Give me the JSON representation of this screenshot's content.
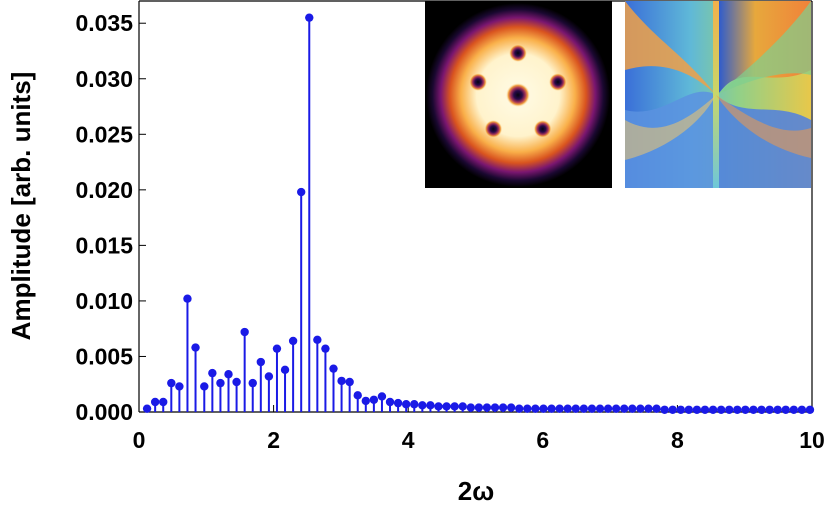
{
  "chart_data": {
    "type": "stem",
    "title": "",
    "xlabel": "2ω",
    "ylabel": "Amplitude [arb. units]",
    "xlim": [
      0,
      10
    ],
    "ylim": [
      0,
      0.037
    ],
    "x_ticks": [
      "0",
      "2",
      "4",
      "6",
      "8",
      "10"
    ],
    "y_ticks": [
      "0.000",
      "0.005",
      "0.010",
      "0.015",
      "0.020",
      "0.025",
      "0.030",
      "0.035"
    ],
    "grid": false,
    "legend": "none",
    "color": "#1a1ae6",
    "insets": [
      "density-image",
      "phase-image"
    ],
    "series": [
      {
        "x": [
          0.12,
          0.24,
          0.36,
          0.48,
          0.6,
          0.72,
          0.84,
          0.97,
          1.09,
          1.21,
          1.33,
          1.45,
          1.57,
          1.69,
          1.81,
          1.93,
          2.05,
          2.17,
          2.29,
          2.41,
          2.53,
          2.65,
          2.77,
          2.89,
          3.01,
          3.13,
          3.25,
          3.37,
          3.49,
          3.61,
          3.73,
          3.85,
          3.97,
          4.09,
          4.21,
          4.33,
          4.45,
          4.57,
          4.69,
          4.81,
          4.93,
          5.05,
          5.17,
          5.29,
          5.41,
          5.53,
          5.65,
          5.77,
          5.89,
          6.01,
          6.13,
          6.25,
          6.37,
          6.49,
          6.61,
          6.73,
          6.85,
          6.97,
          7.09,
          7.21,
          7.33,
          7.45,
          7.57,
          7.69,
          7.81,
          7.93,
          8.05,
          8.17,
          8.29,
          8.41,
          8.53,
          8.65,
          8.77,
          8.89,
          9.01,
          9.13,
          9.25,
          9.37,
          9.49,
          9.61,
          9.73,
          9.85,
          9.97
        ],
        "y": [
          0.0003,
          0.0009,
          0.0009,
          0.0026,
          0.0023,
          0.0102,
          0.0058,
          0.0023,
          0.0035,
          0.0026,
          0.0034,
          0.0027,
          0.0072,
          0.0026,
          0.0045,
          0.0032,
          0.0057,
          0.0038,
          0.0064,
          0.0198,
          0.0355,
          0.0065,
          0.0057,
          0.0039,
          0.0028,
          0.0027,
          0.0015,
          0.001,
          0.0011,
          0.0014,
          0.0009,
          0.0008,
          0.0007,
          0.0007,
          0.0006,
          0.0006,
          0.0005,
          0.0005,
          0.0005,
          0.0005,
          0.0004,
          0.0004,
          0.0004,
          0.0004,
          0.0004,
          0.0004,
          0.0003,
          0.0003,
          0.0003,
          0.0003,
          0.0003,
          0.0003,
          0.0003,
          0.0003,
          0.0003,
          0.0003,
          0.0003,
          0.0003,
          0.0003,
          0.0003,
          0.0003,
          0.0003,
          0.0003,
          0.0003,
          0.0002,
          0.0002,
          0.0002,
          0.0002,
          0.0002,
          0.0002,
          0.0002,
          0.0002,
          0.0002,
          0.0002,
          0.0002,
          0.0002,
          0.0002,
          0.0002,
          0.0002,
          0.0002,
          0.0002,
          0.0002,
          0.0002
        ]
      }
    ]
  }
}
